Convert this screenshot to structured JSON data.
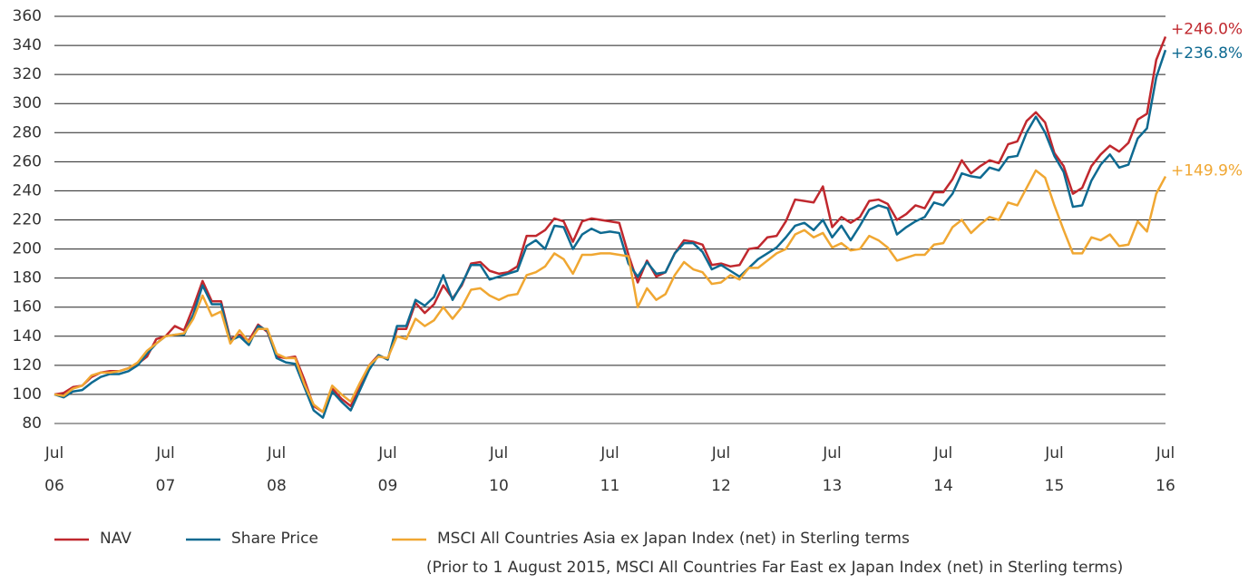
{
  "chart_data": {
    "type": "line",
    "categories": [
      "Jul\n06",
      null,
      null,
      null,
      null,
      null,
      null,
      null,
      null,
      null,
      null,
      null,
      "Jul\n07",
      null,
      null,
      null,
      null,
      null,
      null,
      null,
      null,
      null,
      null,
      null,
      "Jul\n08",
      null,
      null,
      null,
      null,
      null,
      null,
      null,
      null,
      null,
      null,
      null,
      "Jul\n09",
      null,
      null,
      null,
      null,
      null,
      null,
      null,
      null,
      null,
      null,
      null,
      "Jul\n10",
      null,
      null,
      null,
      null,
      null,
      null,
      null,
      null,
      null,
      null,
      null,
      "Jul\n11",
      null,
      null,
      null,
      null,
      null,
      null,
      null,
      null,
      null,
      null,
      null,
      "Jul\n12",
      null,
      null,
      null,
      null,
      null,
      null,
      null,
      null,
      null,
      null,
      null,
      "Jul\n13",
      null,
      null,
      null,
      null,
      null,
      null,
      null,
      null,
      null,
      null,
      null,
      "Jul\n14",
      null,
      null,
      null,
      null,
      null,
      null,
      null,
      null,
      null,
      null,
      null,
      "Jul\n15",
      null,
      null,
      null,
      null,
      null,
      null,
      null,
      null,
      null,
      null,
      null,
      "Jul\n16"
    ],
    "series": [
      {
        "name": "NAV",
        "color": "#c0282e",
        "end_label": "+246.0%",
        "values": [
          100,
          101,
          105,
          106,
          112,
          115,
          116,
          116,
          118,
          121,
          126,
          138,
          140,
          147,
          144,
          160,
          178,
          164,
          164,
          138,
          141,
          137,
          148,
          143,
          126,
          125,
          126,
          110,
          92,
          88,
          104,
          97,
          92,
          105,
          120,
          127,
          124,
          145,
          145,
          163,
          156,
          162,
          175,
          166,
          175,
          190,
          191,
          185,
          183,
          184,
          188,
          209,
          209,
          213,
          221,
          219,
          205,
          219,
          221,
          220,
          219,
          218,
          196,
          177,
          192,
          181,
          184,
          197,
          206,
          205,
          203,
          189,
          190,
          188,
          189,
          200,
          201,
          208,
          209,
          219,
          234,
          233,
          232,
          243,
          215,
          222,
          218,
          222,
          233,
          234,
          231,
          220,
          224,
          230,
          228,
          239,
          239,
          248,
          261,
          252,
          257,
          261,
          259,
          272,
          274,
          288,
          294,
          287,
          266,
          257,
          238,
          242,
          257,
          265,
          271,
          267,
          273,
          289,
          293,
          330,
          346
        ]
      },
      {
        "name": "Share Price",
        "color": "#0e6a91",
        "end_label": "+236.8%",
        "values": [
          100,
          98,
          102,
          103,
          108,
          112,
          114,
          114,
          116,
          120,
          128,
          135,
          140,
          141,
          141,
          155,
          175,
          162,
          162,
          137,
          140,
          134,
          147,
          144,
          125,
          122,
          121,
          105,
          89,
          84,
          102,
          95,
          89,
          103,
          117,
          127,
          124,
          147,
          147,
          165,
          161,
          167,
          182,
          165,
          176,
          189,
          189,
          179,
          181,
          183,
          185,
          202,
          206,
          200,
          216,
          215,
          200,
          210,
          214,
          211,
          212,
          211,
          190,
          181,
          191,
          183,
          184,
          197,
          204,
          204,
          198,
          186,
          189,
          185,
          181,
          187,
          193,
          197,
          201,
          208,
          216,
          218,
          213,
          220,
          208,
          216,
          206,
          216,
          227,
          230,
          228,
          210,
          215,
          219,
          222,
          232,
          230,
          238,
          252,
          250,
          249,
          256,
          254,
          263,
          264,
          280,
          291,
          280,
          264,
          253,
          229,
          230,
          247,
          258,
          265,
          256,
          258,
          276,
          283,
          318,
          336.8
        ]
      },
      {
        "name": "MSCI All Countries Asia ex Japan Index (net) in Sterling terms",
        "color": "#f0a732",
        "end_label": "+149.9%",
        "values": [
          100,
          99,
          104,
          106,
          113,
          115,
          115,
          116,
          118,
          122,
          130,
          135,
          140,
          141,
          142,
          152,
          168,
          154,
          157,
          135,
          144,
          136,
          145,
          145,
          128,
          125,
          125,
          107,
          93,
          88,
          106,
          100,
          95,
          108,
          120,
          126,
          125,
          140,
          138,
          152,
          147,
          151,
          160,
          152,
          160,
          172,
          173,
          168,
          165,
          168,
          169,
          182,
          184,
          188,
          197,
          193,
          183,
          196,
          196,
          197,
          197,
          196,
          195,
          160,
          173,
          165,
          169,
          182,
          191,
          186,
          184,
          176,
          177,
          182,
          179,
          187,
          187,
          192,
          197,
          200,
          210,
          213,
          208,
          211,
          201,
          204,
          199,
          200,
          209,
          206,
          201,
          192,
          194,
          196,
          196,
          203,
          204,
          215,
          220,
          211,
          217,
          222,
          220,
          232,
          230,
          242,
          254,
          249,
          230,
          213,
          197,
          197,
          208,
          206,
          210,
          202,
          203,
          219,
          212,
          238,
          249.9
        ]
      }
    ],
    "legend_note": "(Prior to 1 August 2015, MSCI All Countries Far East ex Japan Index (net) in Sterling terms)",
    "ylim": [
      80,
      360
    ],
    "yticks": [
      80,
      100,
      120,
      140,
      160,
      180,
      200,
      220,
      240,
      260,
      280,
      300,
      320,
      340,
      360
    ],
    "grid": true
  }
}
